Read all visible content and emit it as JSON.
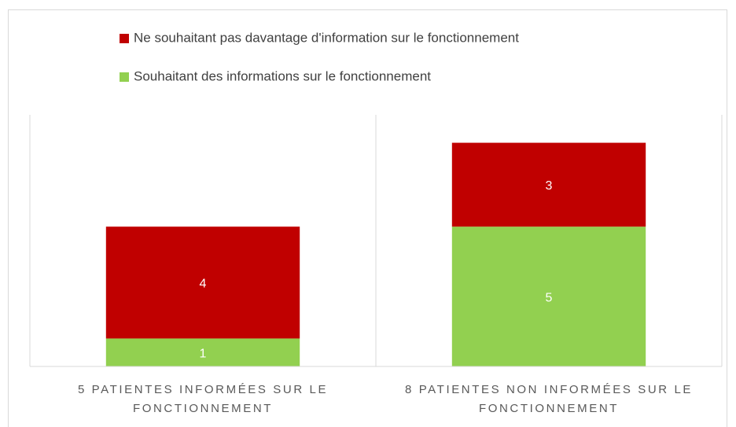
{
  "chart_data": {
    "type": "stacked_bar",
    "categories": [
      "5 PATIENTES INFORMÉES SUR LE FONCTIONNEMENT",
      "8 PATIENTES NON INFORMÉES SUR LE FONCTIONNEMENT"
    ],
    "series": [
      {
        "name": "Souhaitant des informations sur le fonctionnement",
        "color": "#92d050",
        "values": [
          1,
          5
        ]
      },
      {
        "name": "Ne souhaitant pas davantage d'information sur le fonctionnement",
        "color": "#c00000",
        "values": [
          4,
          3
        ]
      }
    ],
    "ylim": [
      0,
      9
    ],
    "legend": "top"
  }
}
